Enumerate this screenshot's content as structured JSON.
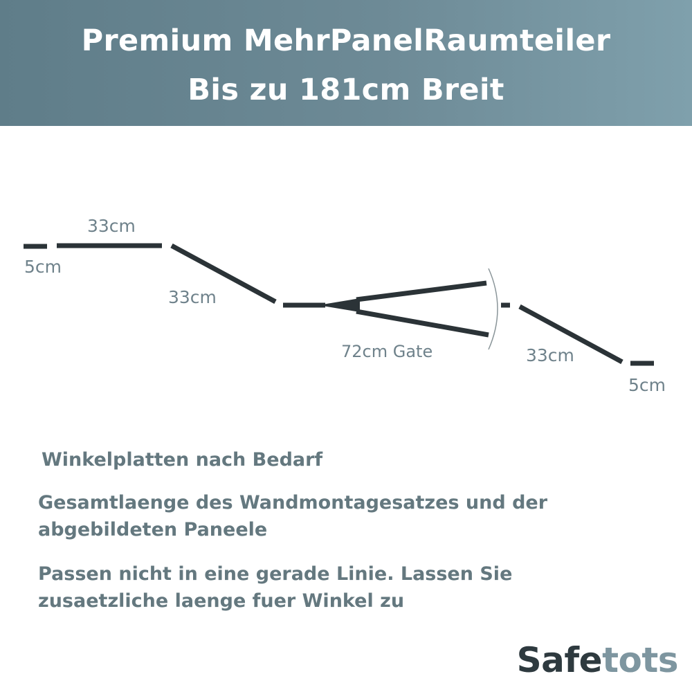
{
  "header": {
    "title_line1": "Premium MehrPanelRaumteiler",
    "title_line2": "Bis zu 181cm Breit"
  },
  "diagram": {
    "labels": {
      "left_wall_kit": "5cm",
      "panel_top": "33cm",
      "panel_left_slant": "33cm",
      "gate": "72cm Gate",
      "panel_right_slant": "33cm",
      "right_wall_kit": "5cm"
    },
    "line_color": "#2b3337",
    "label_color": "#6f828b"
  },
  "notes": {
    "line1": "Winkelplatten nach Bedarf",
    "line2a": "Gesamtlaenge des Wandmontagesatzes und der",
    "line2b": "abgebildeten Paneele",
    "line3a": "Passen nicht in eine gerade Linie. Lassen Sie",
    "line3b": "zusaetzliche laenge fuer Winkel zu"
  },
  "brand": {
    "part1": "Safe",
    "part2": "tots"
  },
  "colors": {
    "header_bg": "#6d8a96",
    "note_text": "#64787f",
    "brand_dark": "#2e3a3f",
    "brand_light": "#7e96a0"
  }
}
